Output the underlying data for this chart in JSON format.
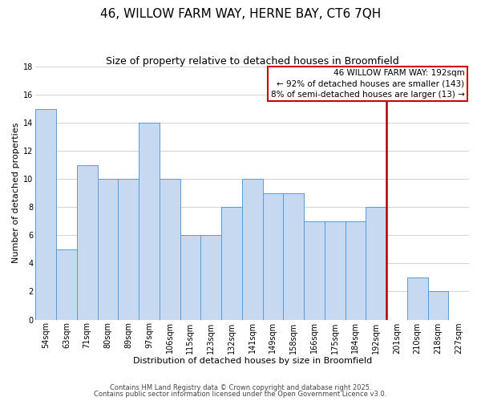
{
  "title": "46, WILLOW FARM WAY, HERNE BAY, CT6 7QH",
  "subtitle": "Size of property relative to detached houses in Broomfield",
  "xlabel": "Distribution of detached houses by size in Broomfield",
  "ylabel": "Number of detached properties",
  "bar_labels": [
    "54sqm",
    "63sqm",
    "71sqm",
    "80sqm",
    "89sqm",
    "97sqm",
    "106sqm",
    "115sqm",
    "123sqm",
    "132sqm",
    "141sqm",
    "149sqm",
    "158sqm",
    "166sqm",
    "175sqm",
    "184sqm",
    "192sqm",
    "201sqm",
    "210sqm",
    "218sqm",
    "227sqm"
  ],
  "bar_values": [
    15,
    5,
    11,
    10,
    10,
    14,
    10,
    6,
    6,
    8,
    10,
    9,
    9,
    7,
    7,
    7,
    8,
    0,
    3,
    2,
    0
  ],
  "bar_color": "#c6d9f0",
  "bar_edge_color": "#5b9bd5",
  "grid_color": "#c0c0c0",
  "background_color": "#ffffff",
  "annotation_line1": "46 WILLOW FARM WAY: 192sqm",
  "annotation_line2": "← 92% of detached houses are smaller (143)",
  "annotation_line3": "8% of semi-detached houses are larger (13) →",
  "annotation_box_edge_color": "#cc0000",
  "vline_x": 16.5,
  "vline_color": "#aa0000",
  "ylim": [
    0,
    18
  ],
  "yticks": [
    0,
    2,
    4,
    6,
    8,
    10,
    12,
    14,
    16,
    18
  ],
  "footnote1": "Contains HM Land Registry data © Crown copyright and database right 2025.",
  "footnote2": "Contains public sector information licensed under the Open Government Licence v3.0.",
  "title_fontsize": 11,
  "subtitle_fontsize": 9,
  "axis_label_fontsize": 8,
  "tick_fontsize": 7,
  "annotation_fontsize": 7.5,
  "footnote_fontsize": 6
}
